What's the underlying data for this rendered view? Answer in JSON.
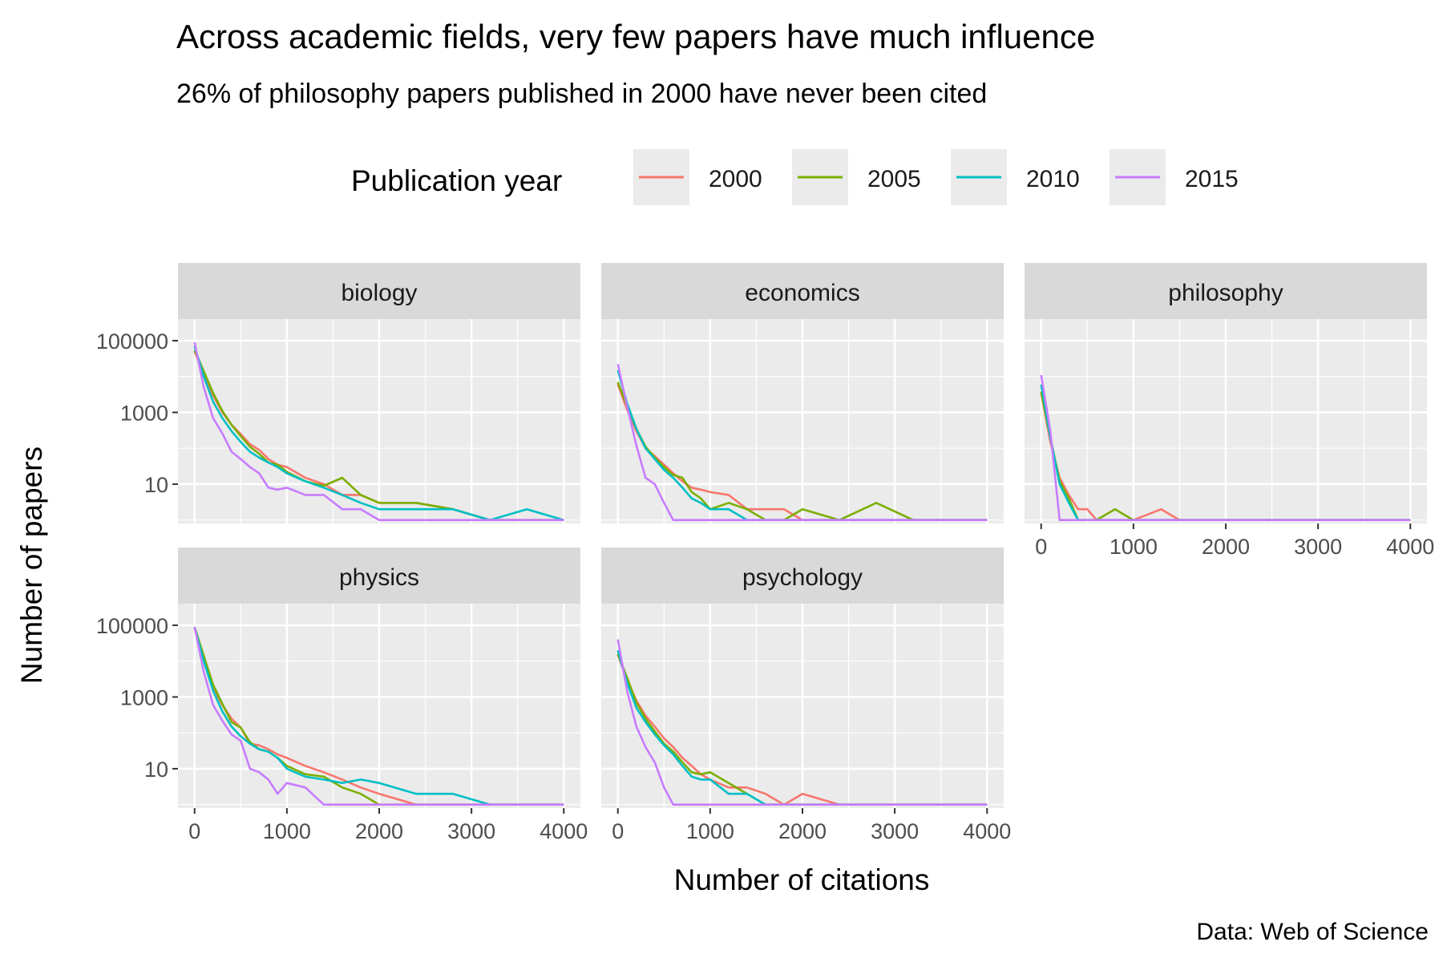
{
  "title": "Across academic fields, very few papers have much influence",
  "subtitle": "26% of philosophy papers published in 2000 have never been cited",
  "caption": "Data: Web of Science",
  "legend": {
    "title": "Publication year",
    "items": [
      {
        "label": "2000",
        "color": "#F8766D"
      },
      {
        "label": "2005",
        "color": "#7CAE00"
      },
      {
        "label": "2010",
        "color": "#00BFC4"
      },
      {
        "label": "2015",
        "color": "#C77CFF"
      }
    ]
  },
  "chart_data": {
    "type": "line",
    "title": "Across academic fields, very few papers have much influence",
    "subtitle": "26% of philosophy papers published in 2000 have never been cited",
    "xlabel": "Number of citations",
    "ylabel": "Number of papers",
    "xlim": [
      0,
      4000
    ],
    "y_scale": "log10",
    "x_ticks": [
      "0",
      "1000",
      "2000",
      "3000",
      "4000"
    ],
    "y_ticks": [
      "10",
      "1000",
      "100000"
    ],
    "grid": true,
    "legend_position": "top",
    "panels": [
      {
        "name": "biology",
        "series": [
          {
            "name": "2000",
            "x": [
              0,
              100,
              200,
              300,
              400,
              500,
              600,
              700,
              800,
              900,
              1000,
              1200,
              1400,
              1600,
              1800,
              2000,
              2400,
              2800,
              3200,
              3600,
              4000
            ],
            "y": [
              50000,
              12000,
              3000,
              1000,
              450,
              250,
              130,
              90,
              50,
              35,
              30,
              15,
              10,
              5,
              5,
              3,
              3,
              2,
              1,
              1,
              1
            ]
          },
          {
            "name": "2005",
            "x": [
              0,
              100,
              200,
              300,
              400,
              500,
              600,
              700,
              800,
              900,
              1000,
              1200,
              1400,
              1600,
              1800,
              2000,
              2400,
              2800,
              3200,
              3600,
              4000
            ],
            "y": [
              55000,
              14000,
              3500,
              1100,
              450,
              220,
              110,
              70,
              40,
              35,
              22,
              12,
              9,
              15,
              5,
              3,
              3,
              2,
              1,
              1,
              1
            ]
          },
          {
            "name": "2010",
            "x": [
              0,
              100,
              200,
              300,
              400,
              500,
              600,
              700,
              800,
              900,
              1000,
              1200,
              1400,
              1600,
              1800,
              2000,
              2400,
              2800,
              3200,
              3600,
              4000
            ],
            "y": [
              70000,
              10000,
              2000,
              700,
              300,
              150,
              80,
              55,
              40,
              30,
              20,
              12,
              8,
              5,
              3,
              2,
              2,
              2,
              1,
              2,
              1
            ]
          },
          {
            "name": "2015",
            "x": [
              0,
              100,
              200,
              300,
              400,
              500,
              600,
              700,
              800,
              900,
              1000,
              1200,
              1400,
              1600,
              1800,
              2000,
              2400,
              2800,
              3200,
              3600,
              4000
            ],
            "y": [
              90000,
              5000,
              700,
              260,
              80,
              50,
              30,
              20,
              8,
              7,
              8,
              5,
              5,
              2,
              2,
              1,
              1,
              1,
              1,
              1,
              1
            ]
          }
        ]
      },
      {
        "name": "economics",
        "series": [
          {
            "name": "2000",
            "x": [
              0,
              100,
              200,
              300,
              400,
              500,
              600,
              700,
              800,
              900,
              1000,
              1200,
              1400,
              1600,
              1800,
              2000,
              2400,
              2800,
              3200,
              3600,
              4000
            ],
            "y": [
              6000,
              1200,
              300,
              100,
              60,
              35,
              20,
              12,
              8,
              7,
              6,
              5,
              2,
              2,
              2,
              1,
              1,
              1,
              1,
              1,
              1
            ]
          },
          {
            "name": "2005",
            "x": [
              0,
              100,
              200,
              300,
              400,
              500,
              600,
              700,
              800,
              900,
              1000,
              1200,
              1400,
              1600,
              1800,
              2000,
              2400,
              2800,
              3200,
              3600,
              4000
            ],
            "y": [
              7000,
              1500,
              350,
              110,
              55,
              30,
              18,
              15,
              6,
              4,
              2,
              3,
              2,
              1,
              1,
              2,
              1,
              3,
              1,
              1,
              1
            ]
          },
          {
            "name": "2010",
            "x": [
              0,
              100,
              200,
              300,
              400,
              500,
              600,
              700,
              800,
              900,
              1000,
              1200,
              1400,
              1600,
              1800,
              2000,
              2400,
              2800,
              3200,
              3600,
              4000
            ],
            "y": [
              15000,
              1800,
              350,
              100,
              50,
              25,
              15,
              8,
              4,
              3,
              2,
              2,
              1,
              1,
              1,
              1,
              1,
              1,
              1,
              1,
              1
            ]
          },
          {
            "name": "2015",
            "x": [
              0,
              100,
              200,
              300,
              400,
              500,
              600,
              700,
              800,
              900,
              1000,
              1200,
              1400,
              1600,
              1800,
              2000,
              2400,
              2800,
              3200,
              3600,
              4000
            ],
            "y": [
              22000,
              1500,
              120,
              15,
              10,
              3,
              1,
              1,
              1,
              1,
              1,
              1,
              1,
              1,
              1,
              1,
              1,
              1,
              1,
              1,
              1
            ]
          }
        ]
      },
      {
        "name": "philosophy",
        "series": [
          {
            "name": "2000",
            "x": [
              0,
              100,
              200,
              300,
              400,
              500,
              600,
              800,
              1000,
              1300,
              1500,
              2000,
              3000,
              4000
            ],
            "y": [
              3500,
              150,
              15,
              5,
              2,
              2,
              1,
              1,
              1,
              2,
              1,
              1,
              1,
              1
            ]
          },
          {
            "name": "2005",
            "x": [
              0,
              100,
              200,
              300,
              400,
              500,
              600,
              800,
              1000,
              1300,
              1500,
              2000,
              3000,
              4000
            ],
            "y": [
              3800,
              200,
              12,
              4,
              1,
              1,
              1,
              2,
              1,
              1,
              1,
              1,
              1,
              1
            ]
          },
          {
            "name": "2010",
            "x": [
              0,
              100,
              200,
              300,
              400,
              500,
              600,
              800,
              1000,
              1300,
              1500,
              2000,
              3000,
              4000
            ],
            "y": [
              6000,
              200,
              10,
              3,
              1,
              1,
              1,
              1,
              1,
              1,
              1,
              1,
              1,
              1
            ]
          },
          {
            "name": "2015",
            "x": [
              0,
              100,
              200,
              300,
              400,
              500,
              600,
              800,
              1000,
              1300,
              1500,
              2000,
              3000,
              4000
            ],
            "y": [
              11000,
              300,
              1,
              1,
              1,
              1,
              1,
              1,
              1,
              1,
              1,
              1,
              1,
              1
            ]
          }
        ]
      },
      {
        "name": "physics",
        "series": [
          {
            "name": "2000",
            "x": [
              0,
              100,
              200,
              300,
              400,
              500,
              600,
              700,
              800,
              900,
              1000,
              1200,
              1400,
              1600,
              1800,
              2000,
              2400,
              2800,
              3200,
              3600,
              4000
            ],
            "y": [
              85000,
              12000,
              2000,
              600,
              250,
              140,
              50,
              45,
              35,
              25,
              20,
              12,
              8,
              5,
              3,
              2,
              1,
              1,
              1,
              1,
              1
            ]
          },
          {
            "name": "2005",
            "x": [
              0,
              100,
              200,
              300,
              400,
              500,
              600,
              700,
              800,
              900,
              1000,
              1200,
              1400,
              1600,
              1800,
              2000,
              2400,
              2800,
              3200,
              3600,
              4000
            ],
            "y": [
              90000,
              14000,
              2200,
              650,
              200,
              140,
              55,
              35,
              30,
              20,
              12,
              7,
              6,
              3,
              2,
              1,
              1,
              1,
              1,
              1,
              1
            ]
          },
          {
            "name": "2010",
            "x": [
              0,
              100,
              200,
              300,
              400,
              500,
              600,
              700,
              800,
              900,
              1000,
              1200,
              1400,
              1600,
              1800,
              2000,
              2400,
              2800,
              3200,
              3600,
              4000
            ],
            "y": [
              88000,
              10000,
              1500,
              400,
              150,
              80,
              50,
              35,
              30,
              20,
              10,
              6,
              5,
              4,
              5,
              4,
              2,
              2,
              1,
              1,
              1
            ]
          },
          {
            "name": "2015",
            "x": [
              0,
              100,
              200,
              300,
              400,
              500,
              600,
              700,
              800,
              900,
              1000,
              1200,
              1400,
              1600,
              1800,
              2000,
              2400,
              2800,
              3200,
              3600,
              4000
            ],
            "y": [
              90000,
              5000,
              600,
              220,
              90,
              60,
              10,
              8,
              5,
              2,
              4,
              3,
              1,
              1,
              1,
              1,
              1,
              1,
              1,
              1,
              1
            ]
          }
        ]
      },
      {
        "name": "psychology",
        "series": [
          {
            "name": "2000",
            "x": [
              0,
              100,
              200,
              300,
              400,
              500,
              600,
              700,
              800,
              900,
              1000,
              1200,
              1400,
              1600,
              1800,
              2000,
              2400,
              2800,
              3200,
              3600,
              4000
            ],
            "y": [
              15000,
              3000,
              800,
              300,
              150,
              70,
              40,
              20,
              12,
              7,
              5,
              3,
              3,
              2,
              1,
              2,
              1,
              1,
              1,
              1,
              1
            ]
          },
          {
            "name": "2005",
            "x": [
              0,
              100,
              200,
              300,
              400,
              500,
              600,
              700,
              800,
              900,
              1000,
              1200,
              1400,
              1600,
              1800,
              2000,
              2400,
              2800,
              3200,
              3600,
              4000
            ],
            "y": [
              16000,
              3500,
              700,
              250,
              110,
              50,
              30,
              15,
              8,
              7,
              8,
              4,
              2,
              1,
              1,
              1,
              1,
              1,
              1,
              1,
              1
            ]
          },
          {
            "name": "2010",
            "x": [
              0,
              100,
              200,
              300,
              400,
              500,
              600,
              700,
              800,
              900,
              1000,
              1200,
              1400,
              1600,
              1800,
              2000,
              2400,
              2800,
              3200,
              3600,
              4000
            ],
            "y": [
              20000,
              2500,
              500,
              200,
              90,
              45,
              25,
              12,
              6,
              5,
              5,
              2,
              2,
              1,
              1,
              1,
              1,
              1,
              1,
              1,
              1
            ]
          },
          {
            "name": "2015",
            "x": [
              0,
              100,
              200,
              300,
              400,
              500,
              600,
              700,
              800,
              900,
              1000,
              1200,
              1400,
              1600,
              1800,
              2000,
              2400,
              2800,
              3200,
              3600,
              4000
            ],
            "y": [
              40000,
              1500,
              150,
              40,
              15,
              3,
              1,
              1,
              1,
              1,
              1,
              1,
              1,
              1,
              1,
              1,
              1,
              1,
              1,
              1,
              1
            ]
          }
        ]
      }
    ]
  }
}
